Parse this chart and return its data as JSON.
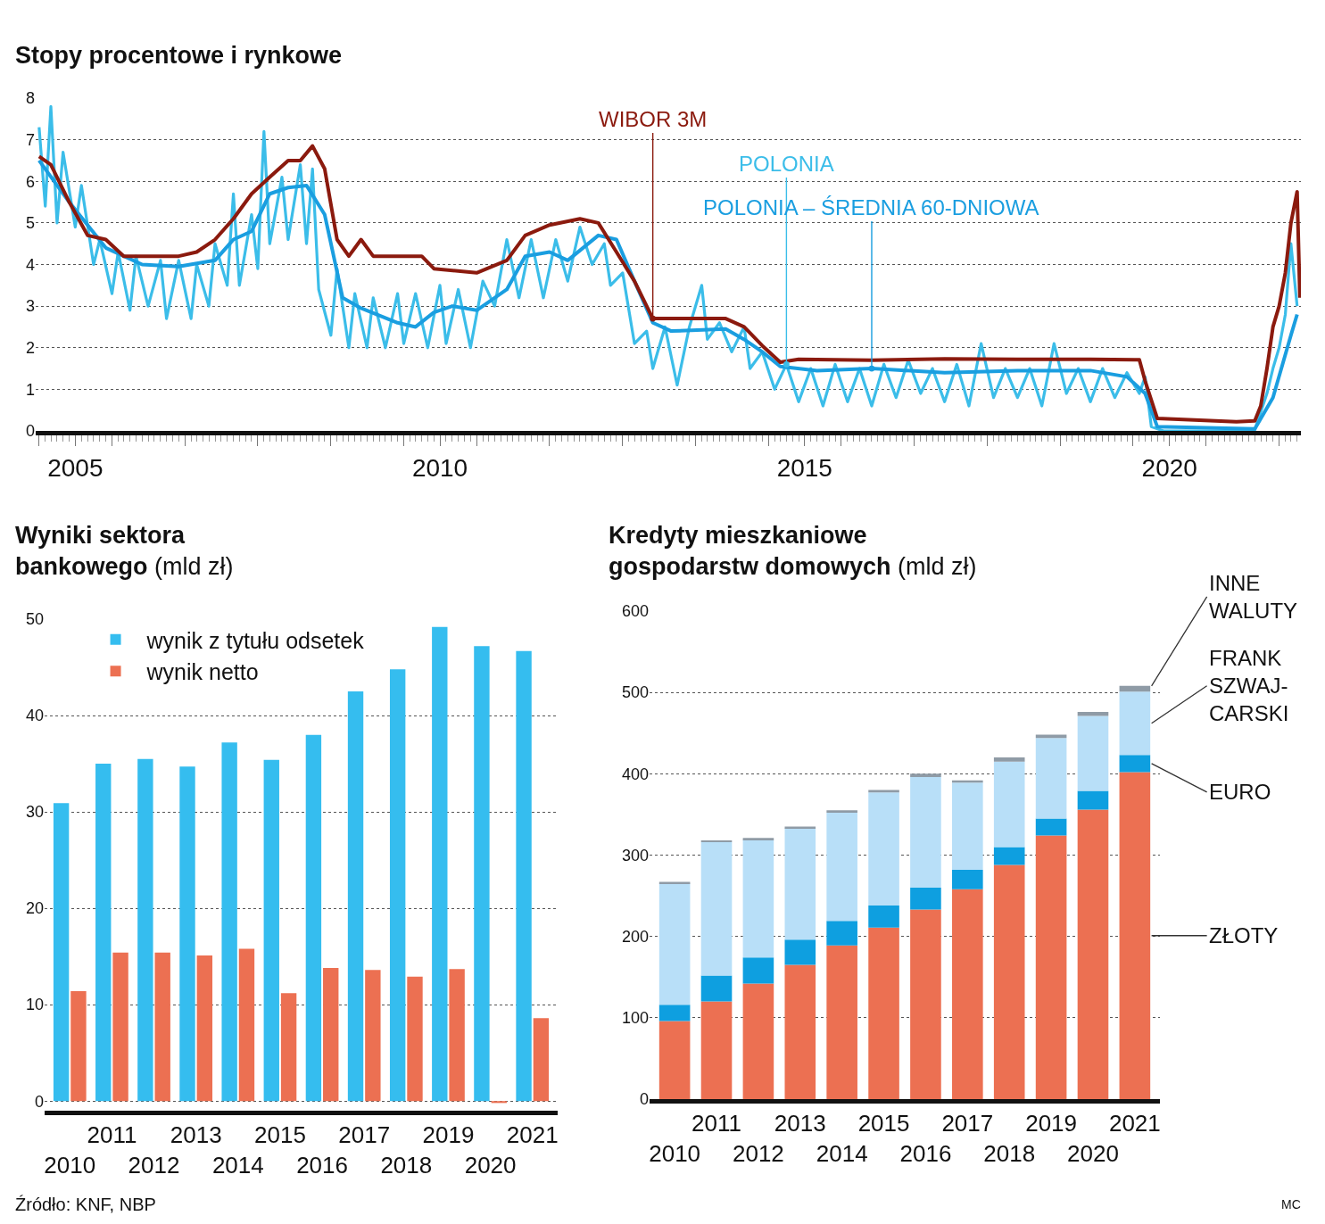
{
  "chart_data": [
    {
      "type": "line",
      "title": "Stopy procentowe i rynkowe",
      "xlim": [
        "2004-12-15",
        "2022-04-20"
      ],
      "ylim": [
        0,
        8
      ],
      "yticks": [
        0,
        1,
        2,
        3,
        4,
        5,
        6,
        7,
        8
      ],
      "xticks": [
        {
          "value": "2005-01-01",
          "label": null
        },
        {
          "value": "2005-07-01",
          "label": "2005"
        },
        {
          "value": "2006-01-01",
          "label": null
        },
        {
          "value": "2007-01-01",
          "label": null
        },
        {
          "value": "2008-01-01",
          "label": null
        },
        {
          "value": "2009-01-01",
          "label": null
        },
        {
          "value": "2010-01-01",
          "label": null
        },
        {
          "value": "2010-07-01",
          "label": "2010"
        },
        {
          "value": "2011-01-01",
          "label": null
        },
        {
          "value": "2012-01-01",
          "label": null
        },
        {
          "value": "2013-01-01",
          "label": null
        },
        {
          "value": "2014-01-01",
          "label": null
        },
        {
          "value": "2015-01-01",
          "label": null
        },
        {
          "value": "2015-07-01",
          "label": "2015"
        },
        {
          "value": "2016-01-01",
          "label": null
        },
        {
          "value": "2017-01-01",
          "label": null
        },
        {
          "value": "2018-01-01",
          "label": null
        },
        {
          "value": "2019-01-01",
          "label": null
        },
        {
          "value": "2020-01-01",
          "label": null
        },
        {
          "value": "2020-07-01",
          "label": "2020"
        },
        {
          "value": "2021-01-01",
          "label": null
        },
        {
          "value": "2022-01-01",
          "label": null
        }
      ],
      "grid": "y",
      "series": [
        {
          "name": "POLONIA",
          "color": "#3bbde9",
          "x": [
            "2005-01",
            "2005-02",
            "2005-03",
            "2005-04",
            "2005-05",
            "2005-07",
            "2005-08",
            "2005-10",
            "2005-11",
            "2006-01",
            "2006-02",
            "2006-04",
            "2006-05",
            "2006-07",
            "2006-09",
            "2006-10",
            "2006-12",
            "2007-02",
            "2007-03",
            "2007-05",
            "2007-06",
            "2007-08",
            "2007-09",
            "2007-10",
            "2007-12",
            "2008-01",
            "2008-02",
            "2008-03",
            "2008-05",
            "2008-06",
            "2008-08",
            "2008-09",
            "2008-10",
            "2008-11",
            "2009-01",
            "2009-02",
            "2009-04",
            "2009-05",
            "2009-07",
            "2009-08",
            "2009-10",
            "2009-12",
            "2010-01",
            "2010-03",
            "2010-05",
            "2010-07",
            "2010-08",
            "2010-10",
            "2010-12",
            "2011-02",
            "2011-04",
            "2011-06",
            "2011-08",
            "2011-10",
            "2011-12",
            "2012-02",
            "2012-04",
            "2012-06",
            "2012-08",
            "2012-10",
            "2012-11",
            "2013-01",
            "2013-03",
            "2013-05",
            "2013-06",
            "2013-08",
            "2013-10",
            "2013-12",
            "2014-02",
            "2014-03",
            "2014-05",
            "2014-07",
            "2014-09",
            "2014-10",
            "2014-12",
            "2015-02",
            "2015-04",
            "2015-06",
            "2015-08",
            "2015-10",
            "2015-12",
            "2016-02",
            "2016-04",
            "2016-06",
            "2016-08",
            "2016-10",
            "2016-12",
            "2017-02",
            "2017-04",
            "2017-06",
            "2017-08",
            "2017-10",
            "2017-12",
            "2018-02",
            "2018-04",
            "2018-06",
            "2018-08",
            "2018-10",
            "2018-12",
            "2019-02",
            "2019-04",
            "2019-06",
            "2019-08",
            "2019-10",
            "2019-12",
            "2020-02",
            "2020-03",
            "2020-04",
            "2020-06",
            "2021-06",
            "2021-09",
            "2021-11",
            "2021-12",
            "2022-01",
            "2022-02",
            "2022-03",
            "2022-04"
          ],
          "values": [
            7.3,
            5.4,
            7.8,
            5.0,
            6.7,
            4.9,
            5.9,
            4.0,
            4.6,
            3.3,
            4.3,
            2.9,
            4.2,
            3.0,
            4.1,
            2.7,
            4.1,
            2.7,
            4.0,
            3.0,
            4.5,
            3.5,
            5.7,
            3.5,
            5.2,
            3.9,
            7.2,
            4.5,
            6.1,
            4.6,
            6.4,
            4.5,
            6.3,
            3.4,
            2.3,
            3.9,
            2.0,
            3.3,
            2.0,
            3.2,
            2.0,
            3.3,
            2.1,
            3.3,
            2.0,
            3.5,
            2.1,
            3.4,
            2.0,
            3.6,
            3.0,
            4.6,
            3.2,
            4.6,
            3.2,
            4.6,
            3.6,
            4.9,
            4.0,
            4.5,
            3.5,
            3.8,
            2.1,
            2.4,
            1.5,
            2.5,
            1.1,
            2.5,
            3.5,
            2.2,
            2.6,
            1.9,
            2.5,
            1.5,
            1.9,
            1.0,
            1.6,
            0.7,
            1.5,
            0.6,
            1.6,
            0.7,
            1.5,
            0.6,
            1.6,
            0.8,
            1.7,
            0.9,
            1.5,
            0.7,
            1.6,
            0.6,
            2.1,
            0.8,
            1.5,
            0.8,
            1.5,
            0.6,
            2.1,
            0.9,
            1.5,
            0.7,
            1.5,
            0.8,
            1.4,
            0.9,
            1.3,
            0.1,
            0.0,
            0.0,
            0.02,
            0.9,
            1.5,
            2.0,
            2.8,
            4.5,
            3.0
          ]
        },
        {
          "name": "POLONIA – ŚREDNIA 60-DNIOWA",
          "color": "#1a9ee0",
          "x": [
            "2005-01",
            "2005-06",
            "2005-12",
            "2006-06",
            "2006-12",
            "2007-06",
            "2007-09",
            "2007-12",
            "2008-03",
            "2008-06",
            "2008-09",
            "2008-12",
            "2009-03",
            "2009-06",
            "2009-12",
            "2010-03",
            "2010-06",
            "2010-09",
            "2011-01",
            "2011-06",
            "2011-09",
            "2012-01",
            "2012-04",
            "2012-09",
            "2012-12",
            "2013-03",
            "2013-06",
            "2013-09",
            "2014-06",
            "2014-09",
            "2014-12",
            "2015-03",
            "2015-09",
            "2016-06",
            "2017-06",
            "2018-06",
            "2019-06",
            "2019-12",
            "2020-03",
            "2020-05",
            "2021-09",
            "2021-12",
            "2022-03",
            "2022-04"
          ],
          "values": [
            6.5,
            5.5,
            4.4,
            4.0,
            3.95,
            4.1,
            4.6,
            4.8,
            5.7,
            5.85,
            5.9,
            5.2,
            3.2,
            2.95,
            2.6,
            2.5,
            2.85,
            3.0,
            2.9,
            3.4,
            4.2,
            4.3,
            4.1,
            4.7,
            4.6,
            3.6,
            2.6,
            2.4,
            2.45,
            2.2,
            1.9,
            1.55,
            1.45,
            1.5,
            1.4,
            1.45,
            1.45,
            1.3,
            0.9,
            0.1,
            0.05,
            0.8,
            2.3,
            2.8
          ]
        },
        {
          "name": "WIBOR 3M",
          "color": "#8b1a0e",
          "x": [
            "2005-01",
            "2005-03",
            "2005-06",
            "2005-09",
            "2005-12",
            "2006-03",
            "2006-06",
            "2006-12",
            "2007-03",
            "2007-06",
            "2007-09",
            "2007-12",
            "2008-03",
            "2008-06",
            "2008-08",
            "2008-10",
            "2008-12",
            "2009-02",
            "2009-04",
            "2009-06",
            "2009-08",
            "2010-01",
            "2010-04",
            "2010-06",
            "2011-01",
            "2011-06",
            "2011-09",
            "2012-01",
            "2012-06",
            "2012-09",
            "2012-12",
            "2013-03",
            "2013-06",
            "2014-06",
            "2014-09",
            "2014-12",
            "2015-03",
            "2015-06",
            "2016-06",
            "2017-06",
            "2018-06",
            "2019-06",
            "2020-02",
            "2020-03",
            "2020-05",
            "2021-06",
            "2021-09",
            "2021-10",
            "2021-11",
            "2021-12",
            "2022-01",
            "2022-02",
            "2022-03",
            "2022-04",
            "2022-04-15"
          ],
          "values": [
            6.6,
            6.4,
            5.5,
            4.7,
            4.6,
            4.2,
            4.2,
            4.2,
            4.3,
            4.6,
            5.1,
            5.7,
            6.1,
            6.5,
            6.5,
            6.85,
            6.3,
            4.6,
            4.2,
            4.6,
            4.2,
            4.2,
            4.2,
            3.9,
            3.8,
            4.1,
            4.7,
            4.95,
            5.1,
            5.0,
            4.3,
            3.6,
            2.7,
            2.7,
            2.5,
            2.05,
            1.65,
            1.72,
            1.7,
            1.73,
            1.72,
            1.72,
            1.71,
            1.2,
            0.3,
            0.22,
            0.24,
            0.6,
            1.5,
            2.5,
            3.0,
            3.8,
            5.0,
            5.75,
            3.2
          ]
        }
      ]
    },
    {
      "type": "bar",
      "title": "Wyniki sektora bankowego",
      "subtitle": "(mld zł)",
      "categories": [
        "2010",
        "2011",
        "2012",
        "2013",
        "2014",
        "2015",
        "2016",
        "2017",
        "2018",
        "2019",
        "2020",
        "2021"
      ],
      "ylim": [
        -1,
        50
      ],
      "yticks": [
        0,
        10,
        20,
        30,
        40,
        50
      ],
      "grid": "y",
      "legend": "top left",
      "series": [
        {
          "name": "wynik z tytułu odsetek",
          "color": "#35bdef",
          "values": [
            30.9,
            35.0,
            35.5,
            34.7,
            37.2,
            35.4,
            38.0,
            42.5,
            44.8,
            49.2,
            47.2,
            46.7
          ]
        },
        {
          "name": "wynik netto",
          "color": "#ec7052",
          "values": [
            11.4,
            15.4,
            15.4,
            15.1,
            15.8,
            11.2,
            13.8,
            13.6,
            12.9,
            13.7,
            -0.2,
            8.6
          ]
        }
      ]
    },
    {
      "type": "bar",
      "stacked": true,
      "title": "Kredyty mieszkaniowe gospodarstw domowych",
      "subtitle": "(mld zł)",
      "categories": [
        "2010",
        "2011",
        "2012",
        "2013",
        "2014",
        "2015",
        "2016",
        "2017",
        "2018",
        "2019",
        "2020",
        "2021"
      ],
      "ylim": [
        0,
        600
      ],
      "yticks": [
        0,
        100,
        200,
        300,
        400,
        500,
        600
      ],
      "grid": "y",
      "series": [
        {
          "name": "ZŁOTY",
          "color": "#ec7052",
          "values": [
            96,
            120,
            142,
            165,
            189,
            211,
            233,
            258,
            288,
            324,
            356,
            402
          ]
        },
        {
          "name": "EURO",
          "color": "#0e9fe0",
          "values": [
            20,
            32,
            32,
            31,
            30,
            27,
            27,
            24,
            22,
            21,
            23,
            21
          ]
        },
        {
          "name": "FRANK SZWAJ-CARSKI",
          "color": "#b8dff8",
          "values": [
            149,
            164,
            145,
            137,
            133,
            139,
            136,
            107,
            105,
            99,
            92,
            78
          ]
        },
        {
          "name": "INNE WALUTY",
          "color": "#8f9ba6",
          "values": [
            2,
            2,
            2,
            2,
            3,
            3,
            4,
            3,
            5,
            4,
            5,
            7
          ]
        }
      ],
      "annotations": [
        "Źródło: KNF, NBP",
        "MC"
      ]
    }
  ]
}
